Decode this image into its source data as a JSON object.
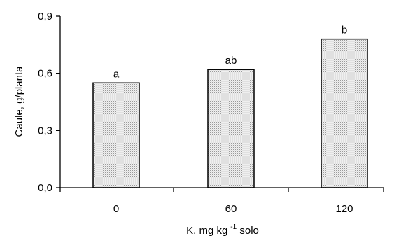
{
  "chart_data": {
    "type": "bar",
    "categories": [
      "0",
      "60",
      "120"
    ],
    "values": [
      0.55,
      0.62,
      0.78
    ],
    "data_labels": [
      "a",
      "ab",
      "b"
    ],
    "title": "",
    "xlabel_main": "K, mg kg",
    "xlabel_sup": "-1",
    "xlabel_tail": " solo",
    "ylabel": "Caule, g/planta",
    "ylim": [
      0,
      0.9
    ],
    "yticks": [
      0.0,
      0.3,
      0.6,
      0.9
    ],
    "ytick_labels": [
      "0,0",
      "0,3",
      "0,6",
      "0,9"
    ],
    "bar_fill": "#e9e9e9",
    "bar_stroke": "#000000",
    "grid": false,
    "legend": "none"
  }
}
